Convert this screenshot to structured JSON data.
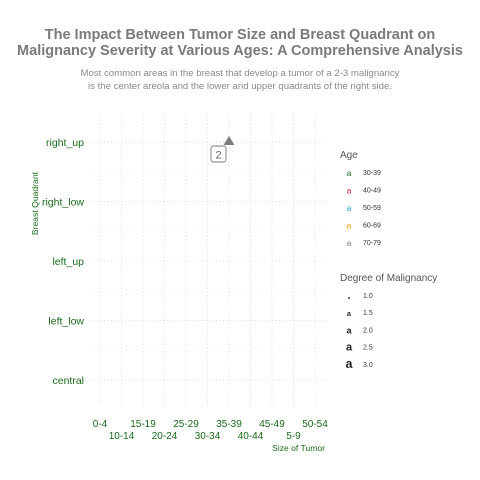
{
  "header": {
    "title_line1": "The Impact Between Tumor Size and Breast Quadrant on",
    "title_line2": "Malignancy Severity at Various Ages: A Comprehensive Analysis",
    "subtitle_line1": "Most common areas in the breast that develop a tumor of a 2-3 malignancy",
    "subtitle_line2": "is the center areola and the lower and upper quadrants of the right side."
  },
  "chart_data": {
    "type": "scatter",
    "xlabel": "Size of Tumor",
    "ylabel": "Breast Quadrant",
    "x_categories": [
      "0-4",
      "10-14",
      "15-19",
      "20-24",
      "25-29",
      "30-34",
      "35-39",
      "40-44",
      "45-49",
      "5-9",
      "50-54"
    ],
    "y_categories": [
      "central",
      "left_low",
      "left_up",
      "right_low",
      "right_up"
    ],
    "grid": true,
    "legend_position": "right",
    "points": [
      {
        "x": "35-39",
        "y": "right_up",
        "label": "2",
        "color": "#7f7f7f"
      }
    ],
    "legend_age": {
      "title": "Age",
      "key_glyph": "a",
      "items": [
        {
          "label": "30-39",
          "color": "#1a6b1a"
        },
        {
          "label": "40-49",
          "color": "#cc1f3a"
        },
        {
          "label": "50-59",
          "color": "#17a7d8"
        },
        {
          "label": "60-69",
          "color": "#f0a30a"
        },
        {
          "label": "70-79",
          "color": "#8a7777"
        }
      ]
    },
    "legend_malignancy": {
      "title": "Degree of Malignancy",
      "key_glyph": "a",
      "items": [
        {
          "label": "1.0",
          "size": 4
        },
        {
          "label": "1.5",
          "size": 7
        },
        {
          "label": "2.0",
          "size": 9
        },
        {
          "label": "2.5",
          "size": 11
        },
        {
          "label": "3.0",
          "size": 12.5
        }
      ]
    }
  }
}
